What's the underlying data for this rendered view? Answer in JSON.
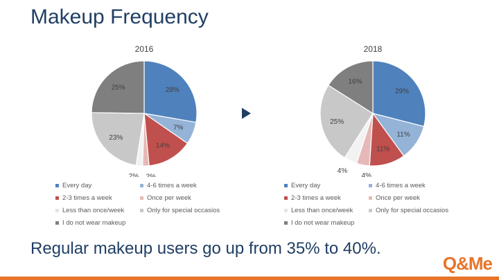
{
  "page": {
    "title": "Makeup Frequency",
    "conclusion": "Regular makeup users go up from 35% to 40%.",
    "logo": "Q&Me",
    "accent_color": "#e8742a",
    "title_color": "#1f3e64",
    "arrow_icon": "play-triangle-icon"
  },
  "chart_data": [
    {
      "type": "pie",
      "title": "2016",
      "categories": [
        "Every day",
        "4-6 times a week",
        "2-3 times a week",
        "Once per week",
        "Less than once/week",
        "Only for special occasios",
        "I do not wear makeup"
      ],
      "values": [
        28,
        7,
        14,
        2,
        2,
        23,
        25
      ],
      "labels": [
        "28%",
        "7%",
        "14%",
        "2%",
        "2%",
        "23%",
        "25%"
      ],
      "colors": [
        "#4f81bd",
        "#95b3d7",
        "#c0504d",
        "#e6b9b8",
        "#f2f2f2",
        "#c8c8c8",
        "#7f7f7f"
      ],
      "legend": "bottom"
    },
    {
      "type": "pie",
      "title": "2018",
      "categories": [
        "Every day",
        "4-6 times a week",
        "2-3 times a week",
        "Once per week",
        "Less than once/week",
        "Only for special occasios",
        "I do not wear makeup"
      ],
      "values": [
        29,
        11,
        11,
        4,
        4,
        25,
        16
      ],
      "labels": [
        "29%",
        "11%",
        "11%",
        "4%",
        "4%",
        "25%",
        "16%"
      ],
      "colors": [
        "#4f81bd",
        "#95b3d7",
        "#c0504d",
        "#e6b9b8",
        "#f2f2f2",
        "#c8c8c8",
        "#7f7f7f"
      ],
      "legend": "bottom"
    }
  ]
}
